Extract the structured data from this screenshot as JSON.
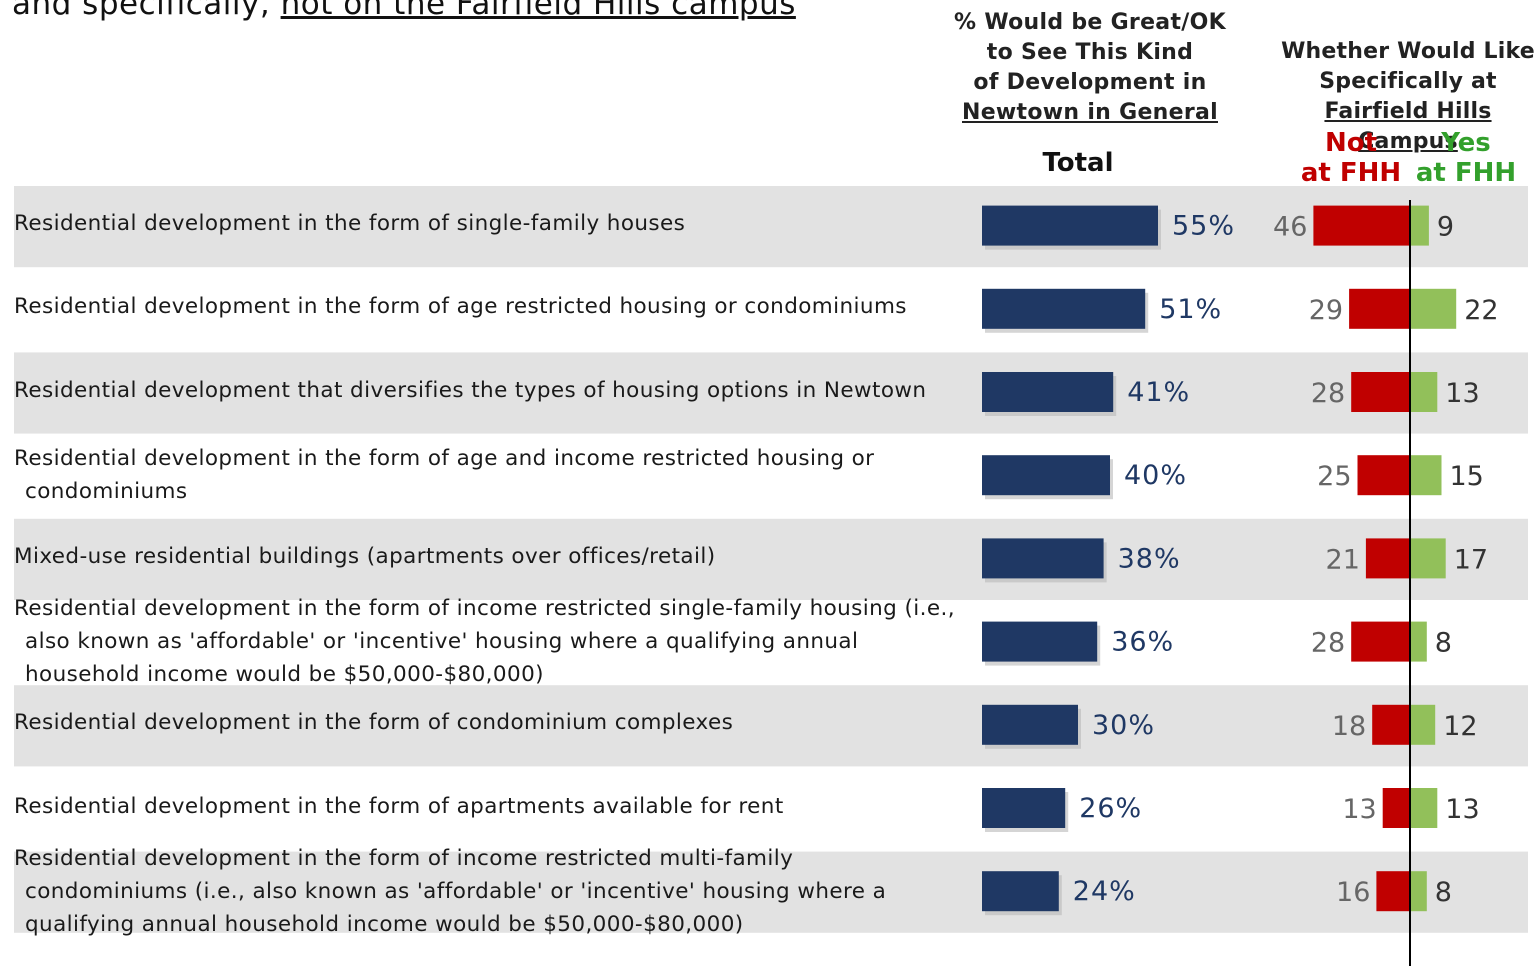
{
  "title": {
    "prefix": "and specifically, ",
    "underlined": "not on the Fairfield Hills campus"
  },
  "headers": {
    "general_lines": [
      "% Would be Great/OK",
      "to See This Kind",
      "of Development in"
    ],
    "general_underlined": "Newtown in General",
    "total": "Total",
    "fhh_lines": [
      "Whether Would Like",
      "Specifically at"
    ],
    "fhh_underlined": "Fairfield Hills Campus",
    "not_lines": [
      "Not",
      "at FHH"
    ],
    "yes_lines": [
      "Yes",
      "at FHH"
    ]
  },
  "colors": {
    "total_bar": "#1f3864",
    "not_bar": "#c00000",
    "yes_bar": "#92c05a",
    "shade": "#e2e2e2",
    "not_header": "#c00000",
    "yes_header": "#33a02c"
  },
  "chart_data": {
    "type": "bar",
    "categories": [
      [
        "Residential development in the form of single-family houses"
      ],
      [
        "Residential development in the form of age restricted housing or condominiums"
      ],
      [
        "Residential development that diversifies the types of housing options in Newtown"
      ],
      [
        "Residential development in the form of age and income restricted housing or",
        "condominiums"
      ],
      [
        "Mixed-use residential buildings (apartments over offices/retail)"
      ],
      [
        "Residential development in the form of income restricted single-family housing (i.e.,",
        "also known as 'affordable' or 'incentive' housing where a qualifying annual",
        "household income would be $50,000-$80,000)"
      ],
      [
        "Residential development in the form of condominium complexes"
      ],
      [
        "Residential development in the form of apartments available for rent"
      ],
      [
        "Residential development in the form of income restricted multi-family",
        "condominiums (i.e., also known as 'affordable' or 'incentive' housing where a",
        "qualifying annual household income would be $50,000-$80,000)"
      ]
    ],
    "series": [
      {
        "name": "Total",
        "values": [
          55,
          51,
          41,
          40,
          38,
          36,
          30,
          26,
          24
        ]
      },
      {
        "name": "Not at FHH",
        "values": [
          46,
          29,
          28,
          25,
          21,
          28,
          18,
          13,
          16
        ]
      },
      {
        "name": "Yes at FHH",
        "values": [
          9,
          22,
          13,
          15,
          17,
          8,
          12,
          13,
          8
        ]
      }
    ],
    "total_labels": [
      "55%",
      "51%",
      "41%",
      "40%",
      "38%",
      "36%",
      "30%",
      "26%",
      "24%"
    ],
    "shaded_rows": [
      0,
      2,
      4,
      6,
      8
    ]
  }
}
